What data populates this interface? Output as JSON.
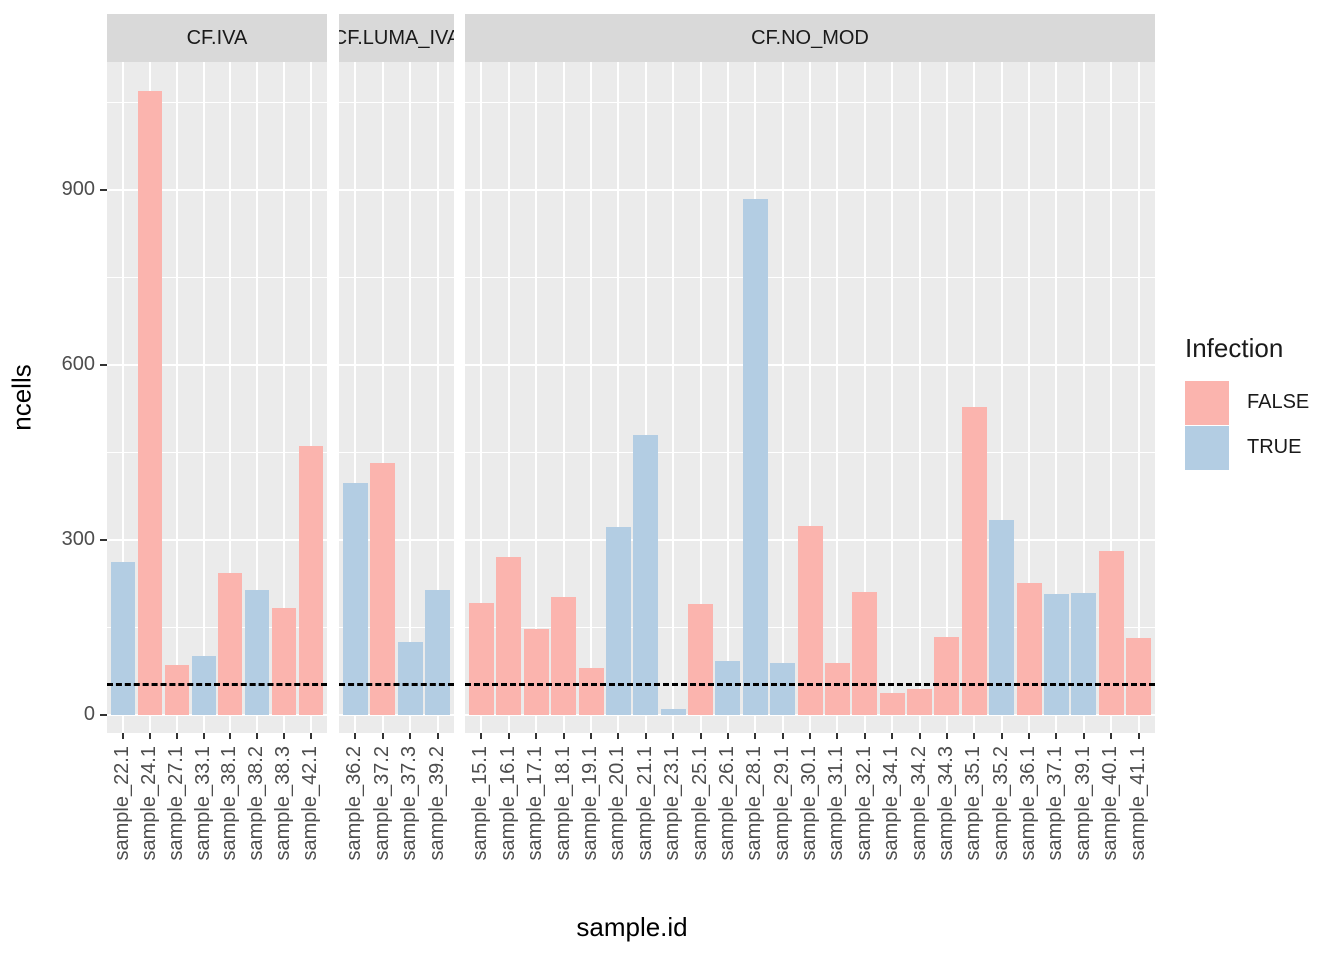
{
  "chart_data": {
    "type": "bar",
    "title": "",
    "xlabel": "sample.id",
    "ylabel": "ncells",
    "y_ticks": [
      0,
      300,
      600,
      900
    ],
    "y_minor_step": 150,
    "ylim": [
      0,
      1120
    ],
    "grid": true,
    "hline": {
      "value": 50,
      "style": "dashed",
      "color": "#000000"
    },
    "legend": {
      "title": "Infection",
      "position": "right",
      "entries": [
        {
          "label": "FALSE",
          "color": "#FBB4AE"
        },
        {
          "label": "TRUE",
          "color": "#B3CDE3"
        }
      ]
    },
    "facets": [
      {
        "label": "CF.IVA",
        "bars": [
          {
            "sample": "sample_22.1",
            "infection": "TRUE",
            "ncells": 262
          },
          {
            "sample": "sample_24.1",
            "infection": "FALSE",
            "ncells": 1070
          },
          {
            "sample": "sample_27.1",
            "infection": "FALSE",
            "ncells": 86
          },
          {
            "sample": "sample_33.1",
            "infection": "TRUE",
            "ncells": 101
          },
          {
            "sample": "sample_38.1",
            "infection": "FALSE",
            "ncells": 243
          },
          {
            "sample": "sample_38.2",
            "infection": "TRUE",
            "ncells": 214
          },
          {
            "sample": "sample_38.3",
            "infection": "FALSE",
            "ncells": 183
          },
          {
            "sample": "sample_42.1",
            "infection": "FALSE",
            "ncells": 461
          }
        ]
      },
      {
        "label": "CF.LUMA_IVA",
        "bars": [
          {
            "sample": "sample_36.2",
            "infection": "TRUE",
            "ncells": 398
          },
          {
            "sample": "sample_37.2",
            "infection": "FALSE",
            "ncells": 432
          },
          {
            "sample": "sample_37.3",
            "infection": "TRUE",
            "ncells": 125
          },
          {
            "sample": "sample_39.2",
            "infection": "TRUE",
            "ncells": 214
          }
        ]
      },
      {
        "label": "CF.NO_MOD",
        "bars": [
          {
            "sample": "sample_15.1",
            "infection": "FALSE",
            "ncells": 192
          },
          {
            "sample": "sample_16.1",
            "infection": "FALSE",
            "ncells": 271
          },
          {
            "sample": "sample_17.1",
            "infection": "FALSE",
            "ncells": 147
          },
          {
            "sample": "sample_18.1",
            "infection": "FALSE",
            "ncells": 202
          },
          {
            "sample": "sample_19.1",
            "infection": "FALSE",
            "ncells": 80
          },
          {
            "sample": "sample_20.1",
            "infection": "TRUE",
            "ncells": 322
          },
          {
            "sample": "sample_21.1",
            "infection": "TRUE",
            "ncells": 480
          },
          {
            "sample": "sample_23.1",
            "infection": "TRUE",
            "ncells": 10
          },
          {
            "sample": "sample_25.1",
            "infection": "FALSE",
            "ncells": 190
          },
          {
            "sample": "sample_26.1",
            "infection": "TRUE",
            "ncells": 93
          },
          {
            "sample": "sample_28.1",
            "infection": "TRUE",
            "ncells": 885
          },
          {
            "sample": "sample_29.1",
            "infection": "TRUE",
            "ncells": 89
          },
          {
            "sample": "sample_30.1",
            "infection": "FALSE",
            "ncells": 324
          },
          {
            "sample": "sample_31.1",
            "infection": "FALSE",
            "ncells": 89
          },
          {
            "sample": "sample_32.1",
            "infection": "FALSE",
            "ncells": 211
          },
          {
            "sample": "sample_34.1",
            "infection": "FALSE",
            "ncells": 38
          },
          {
            "sample": "sample_34.2",
            "infection": "FALSE",
            "ncells": 45
          },
          {
            "sample": "sample_34.3",
            "infection": "FALSE",
            "ncells": 134
          },
          {
            "sample": "sample_35.1",
            "infection": "FALSE",
            "ncells": 528
          },
          {
            "sample": "sample_35.2",
            "infection": "TRUE",
            "ncells": 334
          },
          {
            "sample": "sample_36.1",
            "infection": "FALSE",
            "ncells": 226
          },
          {
            "sample": "sample_37.1",
            "infection": "TRUE",
            "ncells": 207
          },
          {
            "sample": "sample_39.1",
            "infection": "TRUE",
            "ncells": 210
          },
          {
            "sample": "sample_40.1",
            "infection": "FALSE",
            "ncells": 281
          },
          {
            "sample": "sample_41.1",
            "infection": "FALSE",
            "ncells": 132
          }
        ]
      }
    ]
  },
  "style": {
    "panel_bg": "#EBEBEB",
    "strip_bg": "#D9D9D9",
    "grid_color": "#FFFFFF",
    "axis_text_color": "#4D4D4D",
    "false_color": "#FBB4AE",
    "true_color": "#B3CDE3"
  }
}
